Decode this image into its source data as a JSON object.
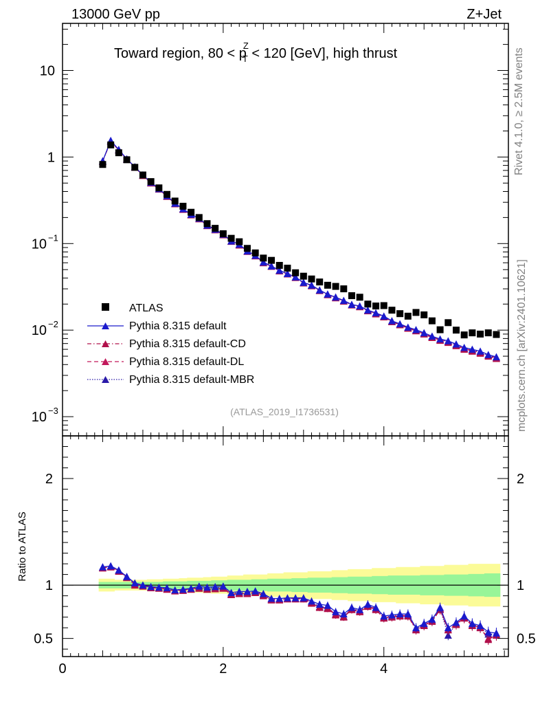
{
  "header": {
    "energy_label": "13000 GeV pp",
    "process_label": "Z+Jet",
    "title_prefix": "Toward region, 80 < p",
    "title_sup": "Z",
    "title_sub": "T",
    "title_suffix": " < 120 [GeV], high thrust",
    "rivet_label": "Rivet 4.1.0, ≥ 2.5M events",
    "source_label": "mcplots.cern.ch [arXiv:2401.10621]",
    "analysis_label": "(ATLAS_2019_I1736531)"
  },
  "colors": {
    "data": "#000000",
    "default": "#1a1acc",
    "cd": "#b0104a",
    "dl": "#c2185b",
    "mbr": "#2a1aa8",
    "band_inner": "#98f598",
    "band_outer": "#fbfb98"
  },
  "chart_data": [
    {
      "type": "scatter",
      "name": "main",
      "yscale": "log",
      "xlim": [
        0,
        5.55
      ],
      "ylim": [
        0.0006,
        35
      ],
      "y_tick_labels": [
        {
          "value": 10,
          "base": "10",
          "exp": ""
        },
        {
          "value": 1,
          "base": "1",
          "exp": ""
        },
        {
          "value": 0.1,
          "base": "10",
          "exp": "−1"
        },
        {
          "value": 0.01,
          "base": "10",
          "exp": "−2"
        },
        {
          "value": 0.001,
          "base": "10",
          "exp": "−3"
        }
      ],
      "x": [
        0.5,
        0.6,
        0.7,
        0.8,
        0.9,
        1.0,
        1.1,
        1.2,
        1.3,
        1.4,
        1.5,
        1.6,
        1.7,
        1.8,
        1.9,
        2.0,
        2.1,
        2.2,
        2.3,
        2.4,
        2.5,
        2.6,
        2.7,
        2.8,
        2.9,
        3.0,
        3.1,
        3.2,
        3.3,
        3.4,
        3.5,
        3.6,
        3.7,
        3.8,
        3.9,
        4.0,
        4.1,
        4.2,
        4.3,
        4.4,
        4.5,
        4.6,
        4.7,
        4.8,
        4.9,
        5.0,
        5.1,
        5.2,
        5.3,
        5.4
      ],
      "series": [
        {
          "name": "ATLAS",
          "key": "data",
          "marker": "square",
          "values": [
            0.82,
            1.38,
            1.12,
            0.93,
            0.76,
            0.62,
            0.52,
            0.44,
            0.37,
            0.31,
            0.27,
            0.23,
            0.2,
            0.17,
            0.15,
            0.13,
            0.115,
            0.105,
            0.088,
            0.078,
            0.068,
            0.064,
            0.056,
            0.052,
            0.046,
            0.042,
            0.039,
            0.036,
            0.033,
            0.032,
            0.03,
            0.025,
            0.024,
            0.02,
            0.019,
            0.0192,
            0.017,
            0.0155,
            0.0145,
            0.016,
            0.015,
            0.0128,
            0.0101,
            0.0122,
            0.01,
            0.0088,
            0.0093,
            0.009,
            0.0093,
            0.0089
          ]
        },
        {
          "name": "Pythia 8.315 default",
          "key": "default",
          "marker": "triangle",
          "dash": "",
          "values": [
            0.9,
            1.55,
            1.22,
            0.95,
            0.77,
            0.62,
            0.51,
            0.43,
            0.357,
            0.292,
            0.252,
            0.217,
            0.196,
            0.163,
            0.146,
            0.128,
            0.107,
            0.098,
            0.082,
            0.073,
            0.061,
            0.055,
            0.049,
            0.045,
            0.041,
            0.0355,
            0.033,
            0.029,
            0.026,
            0.024,
            0.022,
            0.0198,
            0.019,
            0.017,
            0.0158,
            0.0145,
            0.0128,
            0.0118,
            0.0108,
            0.0101,
            0.0093,
            0.0085,
            0.0079,
            0.0075,
            0.0069,
            0.0063,
            0.006,
            0.0057,
            0.0052,
            0.0049
          ]
        },
        {
          "name": "Pythia 8.315 default-CD",
          "key": "cd",
          "marker": "triangle",
          "dash": "6,3,1.5,3",
          "values": [
            0.89,
            1.52,
            1.2,
            0.94,
            0.76,
            0.61,
            0.5,
            0.425,
            0.35,
            0.288,
            0.248,
            0.214,
            0.193,
            0.161,
            0.144,
            0.126,
            0.106,
            0.096,
            0.081,
            0.072,
            0.06,
            0.0545,
            0.0483,
            0.0445,
            0.0405,
            0.035,
            0.0325,
            0.0286,
            0.0256,
            0.0236,
            0.0216,
            0.0195,
            0.0186,
            0.0167,
            0.0154,
            0.0142,
            0.0125,
            0.0115,
            0.0105,
            0.0098,
            0.009,
            0.0082,
            0.0076,
            0.0072,
            0.0066,
            0.006,
            0.0057,
            0.0054,
            0.005,
            0.0047
          ]
        },
        {
          "name": "Pythia 8.315 default-DL",
          "key": "dl",
          "marker": "triangle",
          "dash": "6,4",
          "values": [
            0.895,
            1.53,
            1.21,
            0.945,
            0.765,
            0.615,
            0.505,
            0.428,
            0.353,
            0.29,
            0.25,
            0.215,
            0.194,
            0.162,
            0.145,
            0.127,
            0.1065,
            0.097,
            0.0815,
            0.0725,
            0.0605,
            0.0548,
            0.0486,
            0.0448,
            0.0408,
            0.0352,
            0.0328,
            0.0288,
            0.0258,
            0.0238,
            0.0218,
            0.0196,
            0.0188,
            0.0168,
            0.0156,
            0.0143,
            0.0126,
            0.0116,
            0.0106,
            0.0099,
            0.0091,
            0.0083,
            0.0077,
            0.0073,
            0.0067,
            0.0061,
            0.0058,
            0.0055,
            0.0051,
            0.0048
          ]
        },
        {
          "name": "Pythia 8.315 default-MBR",
          "key": "mbr",
          "marker": "triangle",
          "dash": "1.5,2",
          "values": [
            0.9,
            1.54,
            1.215,
            0.948,
            0.768,
            0.618,
            0.508,
            0.43,
            0.355,
            0.291,
            0.251,
            0.216,
            0.195,
            0.1625,
            0.1455,
            0.1275,
            0.107,
            0.0975,
            0.0818,
            0.0728,
            0.0608,
            0.055,
            0.0488,
            0.045,
            0.041,
            0.0354,
            0.033,
            0.029,
            0.026,
            0.024,
            0.0219,
            0.0197,
            0.0189,
            0.0169,
            0.0157,
            0.0144,
            0.0127,
            0.0117,
            0.0107,
            0.01,
            0.0092,
            0.0084,
            0.0078,
            0.0074,
            0.0068,
            0.0062,
            0.0059,
            0.0056,
            0.0051,
            0.0048
          ]
        }
      ]
    },
    {
      "type": "line",
      "name": "ratio",
      "ylabel": "Ratio to ATLAS",
      "xlim": [
        0,
        5.55
      ],
      "ylim": [
        0.33,
        2.4
      ],
      "y_ticks": [
        0.5,
        1,
        2
      ],
      "y_tick_labels": [
        "0.5",
        "1",
        "2"
      ],
      "x_ticks": [
        0,
        2,
        4
      ],
      "x_tick_labels": [
        "0",
        "2",
        "4"
      ],
      "band_x": [
        0.45,
        0.55,
        0.65,
        0.75,
        0.85,
        0.95,
        1.05,
        1.15,
        1.25,
        1.35,
        1.45,
        1.55,
        1.65,
        1.75,
        1.85,
        1.95,
        2.05,
        2.15,
        2.25,
        2.35,
        2.45,
        2.55,
        2.65,
        2.75,
        2.85,
        2.95,
        3.05,
        3.15,
        3.25,
        3.35,
        3.45,
        3.55,
        3.65,
        3.75,
        3.85,
        3.95,
        4.05,
        4.15,
        4.25,
        4.35,
        4.45,
        4.55,
        4.65,
        4.75,
        4.85,
        4.95,
        5.05,
        5.15,
        5.25,
        5.35,
        5.45
      ],
      "band_inner": [
        0.03,
        0.03,
        0.03,
        0.03,
        0.03,
        0.03,
        0.03,
        0.03,
        0.035,
        0.035,
        0.035,
        0.04,
        0.04,
        0.04,
        0.045,
        0.045,
        0.05,
        0.05,
        0.05,
        0.055,
        0.055,
        0.06,
        0.06,
        0.06,
        0.065,
        0.065,
        0.07,
        0.07,
        0.07,
        0.075,
        0.075,
        0.08,
        0.08,
        0.08,
        0.085,
        0.085,
        0.09,
        0.09,
        0.09,
        0.09,
        0.095,
        0.095,
        0.095,
        0.1,
        0.1,
        0.1,
        0.105,
        0.105,
        0.11,
        0.11
      ],
      "band_outer": [
        0.06,
        0.06,
        0.05,
        0.05,
        0.05,
        0.05,
        0.055,
        0.055,
        0.06,
        0.06,
        0.065,
        0.07,
        0.07,
        0.075,
        0.08,
        0.08,
        0.09,
        0.09,
        0.1,
        0.1,
        0.1,
        0.11,
        0.11,
        0.12,
        0.12,
        0.12,
        0.13,
        0.13,
        0.13,
        0.14,
        0.14,
        0.15,
        0.15,
        0.15,
        0.16,
        0.16,
        0.16,
        0.17,
        0.17,
        0.17,
        0.18,
        0.18,
        0.18,
        0.19,
        0.19,
        0.19,
        0.2,
        0.2,
        0.2,
        0.2
      ],
      "reference_line": 1,
      "x": [
        0.5,
        0.6,
        0.7,
        0.8,
        0.9,
        1.0,
        1.1,
        1.2,
        1.3,
        1.4,
        1.5,
        1.6,
        1.7,
        1.8,
        1.9,
        2.0,
        2.1,
        2.2,
        2.3,
        2.4,
        2.5,
        2.6,
        2.7,
        2.8,
        2.9,
        3.0,
        3.1,
        3.2,
        3.3,
        3.4,
        3.5,
        3.6,
        3.7,
        3.8,
        3.9,
        4.0,
        4.1,
        4.2,
        4.3,
        4.4,
        4.5,
        4.6,
        4.7,
        4.8,
        4.9,
        5.0,
        5.1,
        5.2,
        5.3,
        5.4
      ],
      "series": [
        {
          "name": "Pythia 8.315 default",
          "key": "default",
          "dash": "",
          "values": [
            1.17,
            1.18,
            1.14,
            1.08,
            1.02,
            1.0,
            0.985,
            0.98,
            0.975,
            0.955,
            0.96,
            0.97,
            0.99,
            0.98,
            0.985,
            0.99,
            0.93,
            0.94,
            0.94,
            0.945,
            0.92,
            0.875,
            0.875,
            0.88,
            0.88,
            0.88,
            0.85,
            0.82,
            0.81,
            0.75,
            0.73,
            0.79,
            0.77,
            0.82,
            0.79,
            0.71,
            0.72,
            0.73,
            0.73,
            0.6,
            0.64,
            0.68,
            0.79,
            0.6,
            0.65,
            0.71,
            0.64,
            0.62,
            0.56,
            0.55
          ]
        },
        {
          "name": "Pythia 8.315 default-CD",
          "key": "cd",
          "dash": "6,3,1.5,3",
          "values": [
            1.16,
            1.17,
            1.13,
            1.07,
            1.0,
            0.99,
            0.975,
            0.97,
            0.96,
            0.945,
            0.95,
            0.96,
            0.97,
            0.96,
            0.965,
            0.97,
            0.91,
            0.92,
            0.92,
            0.93,
            0.9,
            0.86,
            0.86,
            0.87,
            0.87,
            0.87,
            0.83,
            0.79,
            0.78,
            0.72,
            0.7,
            0.77,
            0.75,
            0.8,
            0.77,
            0.69,
            0.7,
            0.71,
            0.71,
            0.58,
            0.62,
            0.66,
            0.77,
            0.58,
            0.63,
            0.69,
            0.62,
            0.6,
            0.49,
            0.53
          ]
        },
        {
          "name": "Pythia 8.315 default-DL",
          "key": "dl",
          "dash": "6,4",
          "values": [
            1.165,
            1.175,
            1.135,
            1.075,
            1.01,
            0.995,
            0.98,
            0.975,
            0.965,
            0.95,
            0.955,
            0.965,
            0.975,
            0.965,
            0.97,
            0.975,
            0.915,
            0.925,
            0.925,
            0.935,
            0.905,
            0.865,
            0.865,
            0.875,
            0.875,
            0.875,
            0.835,
            0.795,
            0.785,
            0.725,
            0.705,
            0.775,
            0.755,
            0.805,
            0.775,
            0.695,
            0.705,
            0.715,
            0.715,
            0.585,
            0.625,
            0.665,
            0.775,
            0.585,
            0.635,
            0.695,
            0.625,
            0.605,
            0.5,
            0.535
          ]
        },
        {
          "name": "Pythia 8.315 default-MBR",
          "key": "mbr",
          "dash": "1.5,2",
          "values": [
            1.17,
            1.18,
            1.14,
            1.08,
            1.01,
            1.0,
            0.98,
            0.975,
            0.97,
            0.95,
            0.955,
            0.965,
            0.98,
            0.97,
            0.975,
            0.98,
            0.92,
            0.93,
            0.93,
            0.94,
            0.91,
            0.87,
            0.87,
            0.875,
            0.875,
            0.875,
            0.84,
            0.8,
            0.79,
            0.73,
            0.71,
            0.78,
            0.76,
            0.81,
            0.78,
            0.7,
            0.71,
            0.72,
            0.72,
            0.59,
            0.63,
            0.67,
            0.78,
            0.53,
            0.64,
            0.7,
            0.63,
            0.61,
            0.54,
            0.54
          ]
        }
      ]
    }
  ]
}
